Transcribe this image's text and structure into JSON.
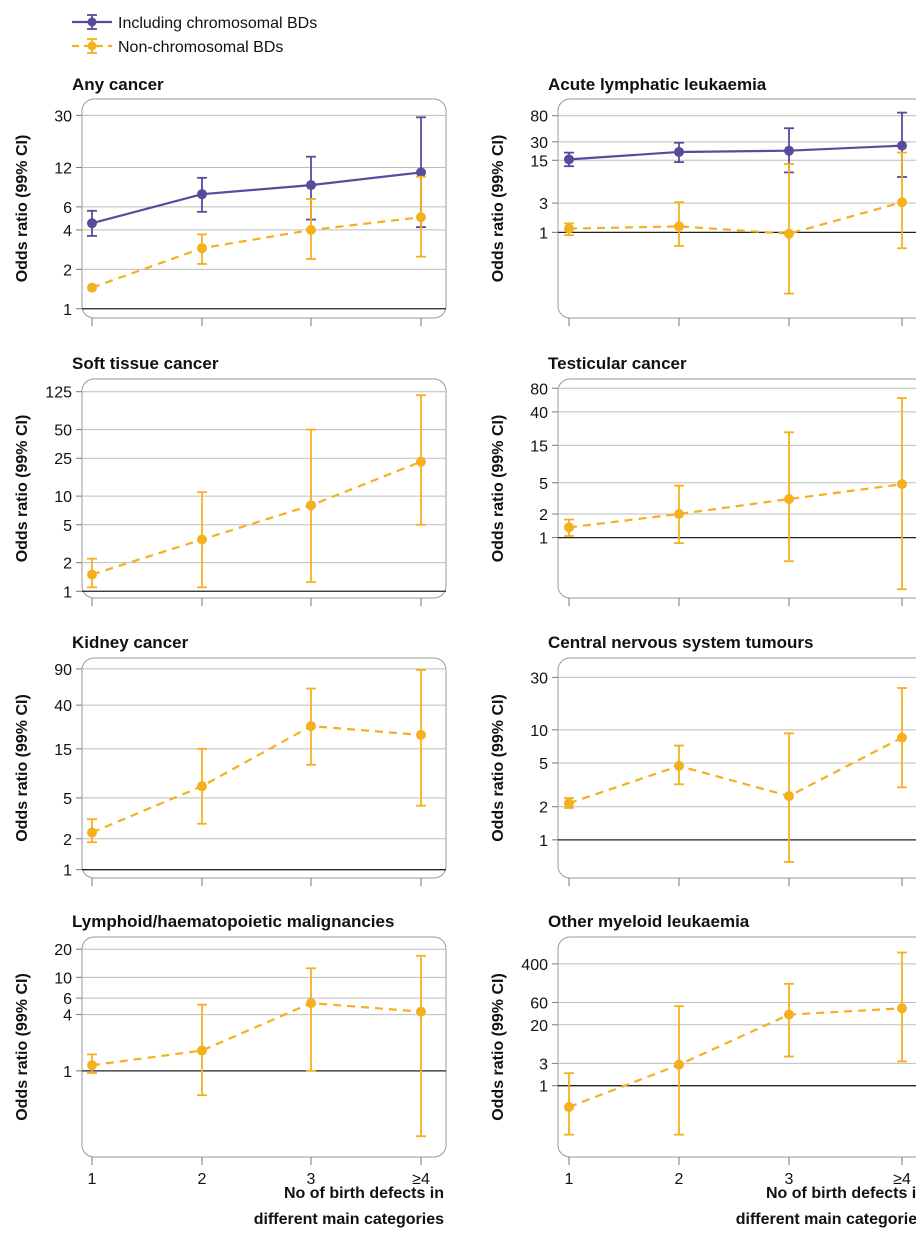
{
  "legend": [
    {
      "name": "Including chromosomal BDs",
      "color": "#5b4a9b",
      "dashed": false
    },
    {
      "name": "Non-chromosomal BDs",
      "color": "#f5b01f",
      "dashed": true
    }
  ],
  "x_axis": {
    "label_line1": "No of birth defects in",
    "label_line2": "different main categories"
  },
  "chart_data": [
    {
      "type": "line",
      "title": "Any cancer",
      "ylabel": "Odds ratio (99% CI)",
      "yscale": "log",
      "categories": [
        "1",
        "2",
        "3",
        "≥4"
      ],
      "ylim": [
        0.85,
        40
      ],
      "yticks": [
        1,
        2,
        4,
        6,
        12,
        30
      ],
      "reference_line": 1,
      "series": [
        {
          "name": "Including chromosomal BDs",
          "values": [
            4.5,
            7.5,
            8.8,
            11
          ],
          "lower": [
            3.6,
            5.5,
            4.8,
            4.2
          ],
          "upper": [
            5.6,
            10,
            14.5,
            29
          ]
        },
        {
          "name": "Non-chromosomal BDs",
          "values": [
            1.45,
            2.9,
            4,
            5
          ],
          "lower": [
            null,
            2.2,
            2.4,
            2.5
          ],
          "upper": [
            null,
            3.7,
            6.9,
            10.2
          ]
        }
      ]
    },
    {
      "type": "line",
      "title": "Acute lymphatic leukaemia",
      "ylabel": "Odds ratio (99% CI)",
      "yscale": "log",
      "categories": [
        "1",
        "2",
        "3",
        "≥4"
      ],
      "ylim": [
        0.04,
        150
      ],
      "yticks": [
        1,
        3,
        15,
        30,
        80
      ],
      "reference_line": 1,
      "series": [
        {
          "name": "Including chromosomal BDs",
          "values": [
            15.5,
            20.5,
            21.5,
            26
          ],
          "lower": [
            12,
            14,
            9.5,
            8
          ],
          "upper": [
            20,
            29,
            50,
            90
          ]
        },
        {
          "name": "Non-chromosomal BDs",
          "values": [
            1.15,
            1.25,
            0.95,
            3.1
          ],
          "lower": [
            0.9,
            0.6,
            0.1,
            0.55
          ],
          "upper": [
            1.4,
            3.1,
            13,
            20
          ]
        }
      ]
    },
    {
      "type": "line",
      "title": "Soft tissue cancer",
      "ylabel": "Odds ratio (99% CI)",
      "yscale": "log",
      "categories": [
        "1",
        "2",
        "3",
        "≥4"
      ],
      "ylim": [
        0.85,
        170
      ],
      "yticks": [
        1,
        2,
        5,
        10,
        25,
        50,
        125
      ],
      "reference_line": 1,
      "series": [
        {
          "name": "Non-chromosomal BDs",
          "values": [
            1.5,
            3.5,
            8,
            23
          ],
          "lower": [
            1.1,
            1.1,
            1.25,
            5
          ],
          "upper": [
            2.2,
            11,
            50,
            115
          ]
        }
      ]
    },
    {
      "type": "line",
      "title": "Testicular cancer",
      "ylabel": "Odds ratio (99% CI)",
      "yscale": "log",
      "categories": [
        "1",
        "2",
        "3",
        "≥4"
      ],
      "ylim": [
        0.17,
        105
      ],
      "yticks": [
        1,
        2,
        5,
        15,
        40,
        80
      ],
      "reference_line": 1,
      "series": [
        {
          "name": "Non-chromosomal BDs",
          "values": [
            1.35,
            2,
            3.1,
            4.8
          ],
          "lower": [
            1.05,
            0.85,
            0.5,
            0.22
          ],
          "upper": [
            1.7,
            4.6,
            22,
            60
          ]
        }
      ]
    },
    {
      "type": "line",
      "title": "Kidney cancer",
      "ylabel": "Odds ratio (99% CI)",
      "yscale": "log",
      "categories": [
        "1",
        "2",
        "3",
        "≥4"
      ],
      "ylim": [
        0.83,
        115
      ],
      "yticks": [
        1,
        2,
        5,
        15,
        40,
        90
      ],
      "reference_line": 1,
      "series": [
        {
          "name": "Non-chromosomal BDs",
          "values": [
            2.3,
            6.5,
            25,
            20.5
          ],
          "lower": [
            1.85,
            2.8,
            10.5,
            4.2
          ],
          "upper": [
            3.1,
            15,
            58,
            88
          ]
        }
      ]
    },
    {
      "type": "line",
      "title": "Central nervous system tumours",
      "ylabel": "Odds ratio (99% CI)",
      "yscale": "log",
      "categories": [
        "1",
        "2",
        "3",
        "≥4"
      ],
      "ylim": [
        0.45,
        45
      ],
      "yticks": [
        1,
        2,
        5,
        10,
        30
      ],
      "reference_line": 1,
      "series": [
        {
          "name": "Non-chromosomal BDs",
          "values": [
            2.15,
            4.7,
            2.5,
            8.5
          ],
          "lower": [
            1.95,
            3.2,
            0.63,
            3
          ],
          "upper": [
            2.4,
            7.2,
            9.3,
            24
          ]
        }
      ]
    },
    {
      "type": "line",
      "title": "Lymphoid/haematopoietic malignancies",
      "ylabel": "Odds ratio (99% CI)",
      "yscale": "log",
      "categories": [
        "1",
        "2",
        "3",
        "≥4"
      ],
      "ylim": [
        0.12,
        27
      ],
      "yticks": [
        1,
        4,
        6,
        10,
        20
      ],
      "reference_line": 1,
      "series": [
        {
          "name": "Non-chromosomal BDs",
          "values": [
            1.15,
            1.65,
            5.3,
            4.3
          ],
          "lower": [
            0.95,
            0.55,
            1,
            0.2
          ],
          "upper": [
            1.5,
            5.1,
            12.5,
            17
          ]
        }
      ]
    },
    {
      "type": "line",
      "title": "Other myeloid leukaemia",
      "ylabel": "Odds ratio (99% CI)",
      "yscale": "log",
      "categories": [
        "1",
        "2",
        "3",
        "≥4"
      ],
      "ylim": [
        0.03,
        1500
      ],
      "yticks": [
        1,
        3,
        20,
        60,
        400
      ],
      "reference_line": 1,
      "series": [
        {
          "name": "Non-chromosomal BDs",
          "values": [
            0.35,
            2.8,
            33,
            45
          ],
          "lower": [
            0.09,
            0.09,
            4.2,
            3.3
          ],
          "upper": [
            1.85,
            50,
            150,
            700
          ]
        }
      ]
    }
  ]
}
